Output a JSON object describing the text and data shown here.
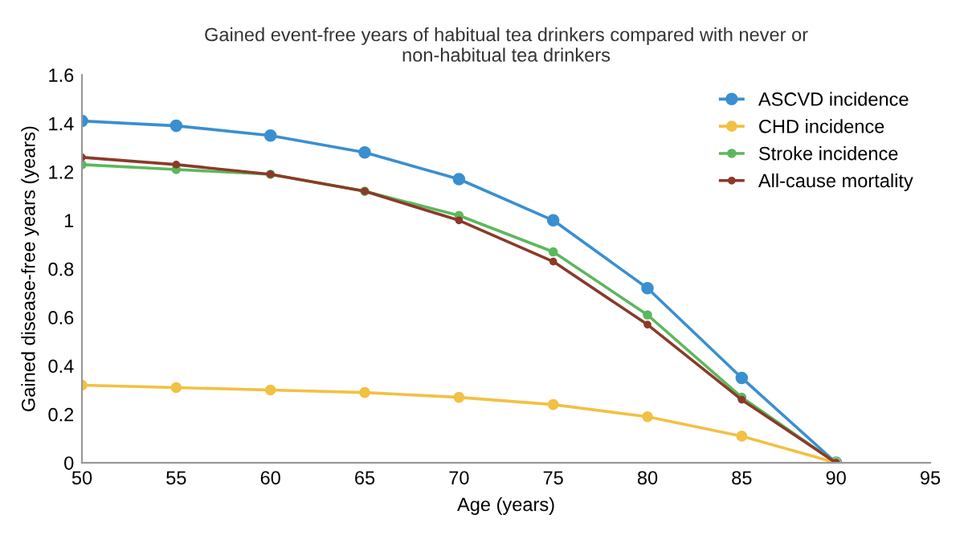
{
  "chart_data": {
    "type": "line",
    "title": "Gained event-free years of habitual tea drinkers compared with never or\nnon-habitual tea drinkers",
    "xlabel": "Age (years)",
    "ylabel": "Gained disease-free years (years)",
    "x": [
      50,
      55,
      60,
      65,
      70,
      75,
      80,
      85,
      90
    ],
    "series": [
      {
        "name": "ASCVD incidence",
        "color": "#3a8fd0",
        "values": [
          1.41,
          1.39,
          1.35,
          1.28,
          1.17,
          1.0,
          0.72,
          0.35,
          0
        ]
      },
      {
        "name": "CHD incidence",
        "color": "#f2c043",
        "values": [
          0.32,
          0.31,
          0.3,
          0.29,
          0.27,
          0.24,
          0.19,
          0.11,
          0
        ]
      },
      {
        "name": "Stroke incidence",
        "color": "#5cb85c",
        "values": [
          1.23,
          1.21,
          1.19,
          1.12,
          1.02,
          0.87,
          0.61,
          0.27,
          0
        ]
      },
      {
        "name": "All-cause mortality",
        "color": "#8b3a2a",
        "values": [
          1.26,
          1.23,
          1.19,
          1.12,
          1.0,
          0.83,
          0.57,
          0.26,
          0
        ]
      }
    ],
    "xlim": [
      50,
      95
    ],
    "xticks": [
      50,
      55,
      60,
      65,
      70,
      75,
      80,
      85,
      90,
      95
    ],
    "ylim": [
      0,
      1.6
    ],
    "yticks": [
      0,
      0.2,
      0.4,
      0.6,
      0.8,
      1,
      1.2,
      1.4,
      1.6
    ],
    "marker": "circle",
    "legend": "top right",
    "grid": false
  }
}
